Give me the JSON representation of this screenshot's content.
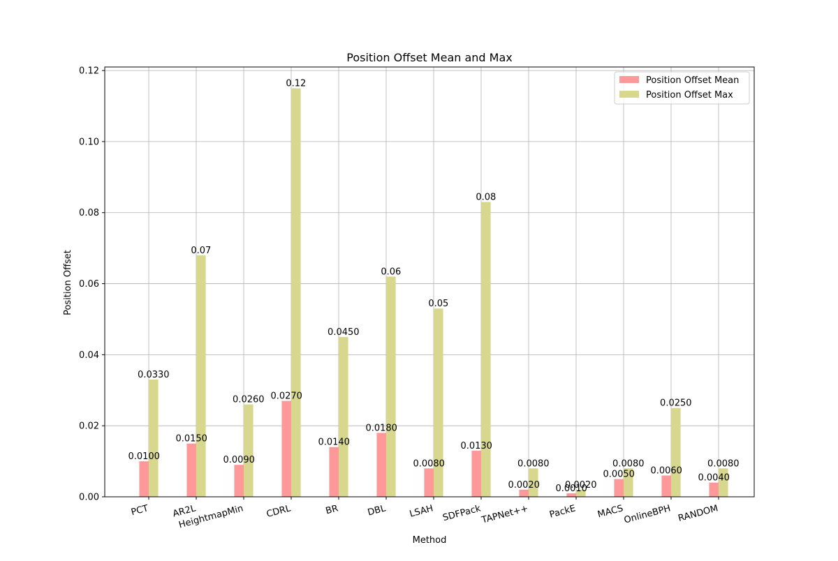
{
  "chart_data": {
    "type": "bar",
    "title": "Position Offset Mean and Max",
    "xlabel": "Method",
    "ylabel": "Position Offset",
    "ylim": [
      0,
      0.121
    ],
    "y_ticks": [
      "0.00",
      "0.02",
      "0.04",
      "0.06",
      "0.08",
      "0.10",
      "0.12"
    ],
    "y_tick_values": [
      0,
      0.02,
      0.04,
      0.06,
      0.08,
      0.1,
      0.12
    ],
    "grid": true,
    "legend_position": "top-right",
    "categories": [
      "PCT",
      "AR2L",
      "HeightmapMin",
      "CDRL",
      "BR",
      "DBL",
      "LSAH",
      "SDFPack",
      "TAPNet++",
      "PackE",
      "MACS",
      "OnlineBPH",
      "RANDOM"
    ],
    "series": [
      {
        "name": "Position Offset Mean",
        "color": "#ff9999",
        "values": [
          0.01,
          0.015,
          0.009,
          0.027,
          0.014,
          0.018,
          0.008,
          0.013,
          0.002,
          0.001,
          0.005,
          0.006,
          0.004
        ],
        "labels": [
          "0.0100",
          "0.0150",
          "0.0090",
          "0.0270",
          "0.0140",
          "0.0180",
          "0.0080",
          "0.0130",
          "0.0020",
          "0.0010",
          "0.0050",
          "0.0060",
          "0.0040"
        ]
      },
      {
        "name": "Position Offset Max",
        "color": "#d7d88e",
        "values": [
          0.033,
          0.068,
          0.026,
          0.115,
          0.045,
          0.062,
          0.053,
          0.083,
          0.008,
          0.002,
          0.008,
          0.025,
          0.008
        ],
        "labels": [
          "0.0330",
          "0.07",
          "0.0260",
          "0.12",
          "0.0450",
          "0.06",
          "0.05",
          "0.08",
          "0.0080",
          "0.0020",
          "0.0080",
          "0.0250",
          "0.0080"
        ]
      }
    ]
  }
}
